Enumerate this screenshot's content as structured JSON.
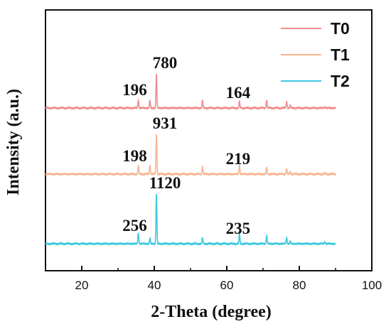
{
  "chart_data": {
    "type": "line",
    "xlabel": "2-Theta (degree)",
    "ylabel": "Intensity (a.u.)",
    "xlim": [
      10,
      100
    ],
    "xticks": [
      20,
      40,
      60,
      80,
      100
    ],
    "show_y_ticks": false,
    "grid": false,
    "legend_position": "top-right",
    "peak_positions": [
      35.6,
      38.8,
      40.6,
      53.3,
      63.5,
      71.0,
      76.5,
      77.5,
      87.0
    ],
    "series": [
      {
        "name": "T0",
        "color": "#f08c8c",
        "relative_peak_heights": [
          0.23,
          0.23,
          1.0,
          0.23,
          0.21,
          0.23,
          0.2,
          0.08,
          0.04
        ],
        "annotations": [
          {
            "x": 35.6,
            "text": "196"
          },
          {
            "x": 40.6,
            "text": "780"
          },
          {
            "x": 63.5,
            "text": "164"
          }
        ]
      },
      {
        "name": "T1",
        "color": "#f7b48f",
        "relative_peak_heights": [
          0.22,
          0.22,
          1.0,
          0.2,
          0.23,
          0.18,
          0.14,
          0.07,
          0.04
        ],
        "annotations": [
          {
            "x": 35.6,
            "text": "198"
          },
          {
            "x": 40.6,
            "text": "931"
          },
          {
            "x": 63.5,
            "text": "219"
          }
        ]
      },
      {
        "name": "T2",
        "color": "#3cc8e0",
        "relative_peak_heights": [
          0.22,
          0.12,
          1.0,
          0.12,
          0.21,
          0.16,
          0.12,
          0.06,
          0.04
        ],
        "annotations": [
          {
            "x": 35.6,
            "text": "256"
          },
          {
            "x": 40.6,
            "text": "1120"
          },
          {
            "x": 63.5,
            "text": "235"
          }
        ]
      }
    ]
  }
}
